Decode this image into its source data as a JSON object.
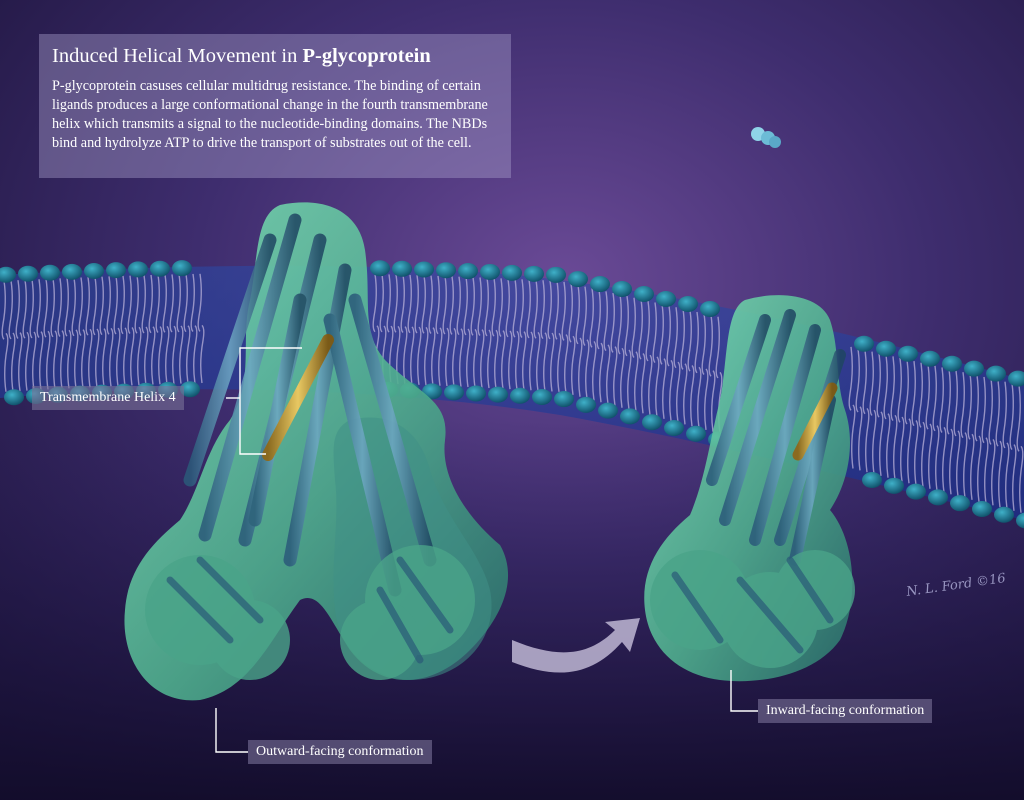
{
  "title": {
    "plain": "Induced Helical Movement in ",
    "bold": "P-glycoprotein"
  },
  "description": "P-glycoprotein casuses cellular multidrug resistance. The binding of certain ligands produces a large conformational change in the fourth transmembrane helix which transmits a signal to the nucleotide-binding domains. The NBDs bind and hydrolyze ATP to drive the transport of substrates out of the cell.",
  "labels": {
    "helix4": "Transmembrane Helix 4",
    "outward": "Outward-facing conformation",
    "inward": "Inward-facing conformation"
  },
  "signature": "N. L. Ford ©16",
  "colors": {
    "background_top": "#4a3a7a",
    "background_bottom": "#1e1540",
    "membrane_head": "#1a6f8a",
    "membrane_tail": "#b8b0d8",
    "protein": "#5fc9a0",
    "helix4_highlight": "#d4b04a",
    "arrow": "#c8c0dc"
  }
}
